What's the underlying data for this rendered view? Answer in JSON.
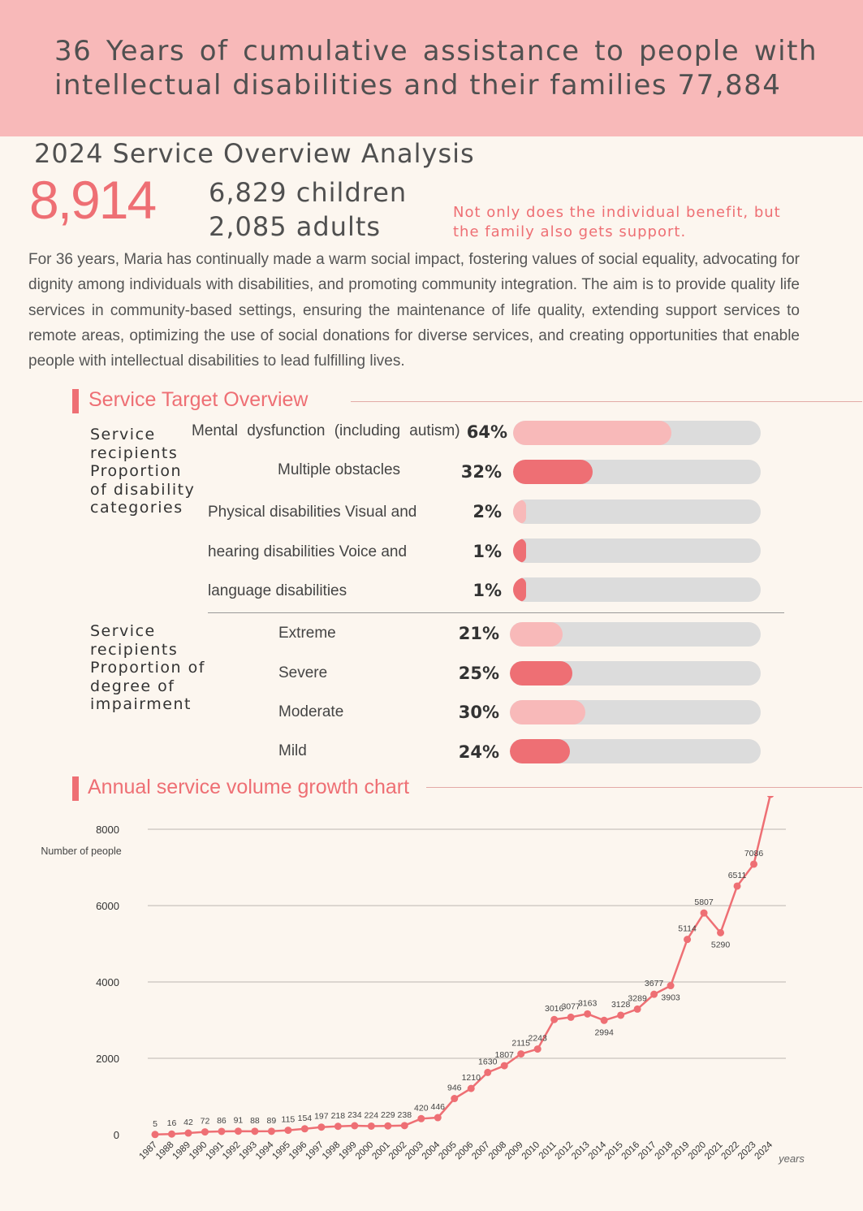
{
  "header": {
    "title": "36 Years of cumulative assistance to people with intellectual disabilities and their families 77,884"
  },
  "overview": {
    "title": "2024 Service Overview Analysis",
    "total": "8,914",
    "children": "6,829 children",
    "adults": "2,085 adults",
    "note": "Not only does the individual benefit, but the family also gets support.",
    "paragraph": "For 36 years, Maria has continually made a warm social impact, fostering values of social equality, advocating for dignity among individuals with disabilities, and promoting community integration. The aim is to provide quality life services in community-based settings, ensuring the maintenance of life quality, extending support services to remote areas, optimizing the use of social donations for diverse services, and creating opportunities that enable people with intellectual disabilities to lead fulfilling lives."
  },
  "service_target": {
    "title": "Service Target Overview",
    "disability": {
      "group_label": "Service recipients Proportion of disability categories",
      "rows": [
        {
          "label": "Mental dysfunction (including autism)",
          "pct": "64%",
          "value": 0.64
        },
        {
          "label": "Multiple obstacles",
          "pct": "32%",
          "value": 0.32
        },
        {
          "label": "Physical disabilities Visual and",
          "pct": "2%",
          "value": 0.02
        },
        {
          "label": "hearing disabilities Voice and",
          "pct": "1%",
          "value": 0.01
        },
        {
          "label": "language disabilities",
          "pct": "1%",
          "value": 0.01
        }
      ]
    },
    "impairment": {
      "group_label": "Service recipients Proportion of degree of impairment",
      "rows": [
        {
          "label": "Extreme",
          "pct": "21%",
          "value": 0.21
        },
        {
          "label": "Severe",
          "pct": "25%",
          "value": 0.25
        },
        {
          "label": "Moderate",
          "pct": "30%",
          "value": 0.3
        },
        {
          "label": "Mild",
          "pct": "24%",
          "value": 0.24
        }
      ]
    },
    "colors": {
      "light": "#f8b9b9",
      "dark": "#ee6f74",
      "track": "#dcdcdc"
    }
  },
  "growth": {
    "title": "Annual service volume growth chart"
  },
  "chart_data": {
    "type": "line",
    "title": "",
    "xlabel": "years",
    "ylabel": "Number of people",
    "ylim": [
      0,
      8000
    ],
    "yticks": [
      0,
      2000,
      4000,
      6000,
      8000
    ],
    "grid": true,
    "color": "#ee6f74",
    "x": [
      "1987",
      "1988",
      "1989",
      "1990",
      "1991",
      "1992",
      "1993",
      "1994",
      "1995",
      "1996",
      "1997",
      "1998",
      "1999",
      "2000",
      "2001",
      "2002",
      "2003",
      "2004",
      "2005",
      "2006",
      "2007",
      "2008",
      "2009",
      "2010",
      "2011",
      "2012",
      "2013",
      "2014",
      "2015",
      "2016",
      "2017",
      "2018",
      "2019",
      "2020",
      "2021",
      "2022",
      "2023",
      "2024"
    ],
    "values": [
      5,
      16,
      42,
      72,
      86,
      91,
      88,
      89,
      115,
      154,
      197,
      218,
      234,
      224,
      229,
      238,
      420,
      446,
      946,
      1210,
      1630,
      1807,
      2115,
      2243,
      3016,
      3077,
      3163,
      2994,
      3128,
      3289,
      3677,
      3903,
      5114,
      5807,
      5290,
      6511,
      7086,
      8914
    ],
    "label_below": [
      "2014",
      "2018",
      "2021"
    ]
  }
}
